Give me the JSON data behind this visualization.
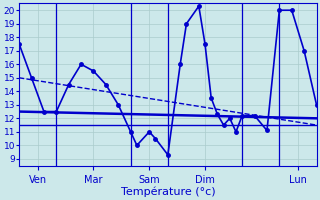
{
  "title": "Température (°c)",
  "background_color": "#cce8ea",
  "grid_color": "#aacccc",
  "line_color": "#0000cc",
  "ylim": [
    8.5,
    20.5
  ],
  "yticks": [
    9,
    10,
    11,
    12,
    13,
    14,
    15,
    16,
    17,
    18,
    19,
    20
  ],
  "xlim": [
    0,
    96
  ],
  "day_separators": [
    12,
    36,
    48,
    72,
    84
  ],
  "day_labels": [
    {
      "x": 6,
      "label": "Ven"
    },
    {
      "x": 24,
      "label": "Mar"
    },
    {
      "x": 42,
      "label": "Sam"
    },
    {
      "x": 60,
      "label": "Dim"
    },
    {
      "x": 90,
      "label": "Lun"
    }
  ],
  "series_main": {
    "x": [
      0,
      4,
      8,
      12,
      16,
      20,
      24,
      28,
      32,
      36,
      38,
      42,
      44,
      48,
      52,
      54,
      58,
      60,
      62,
      64,
      66,
      68,
      70,
      72,
      76,
      80,
      84,
      88,
      92,
      96
    ],
    "y": [
      17.5,
      15.0,
      12.5,
      12.5,
      14.5,
      16.0,
      15.5,
      14.5,
      13.0,
      11.0,
      10.0,
      11.0,
      10.5,
      9.3,
      16.0,
      19.0,
      20.3,
      17.5,
      13.5,
      12.3,
      11.5,
      12.0,
      11.0,
      12.2,
      12.2,
      11.1,
      20.0,
      20.0,
      17.0,
      13.0
    ],
    "linewidth": 1.2,
    "markersize": 2.5
  },
  "series_flat1": {
    "x": [
      0,
      96
    ],
    "y": [
      12.5,
      12.0
    ],
    "linewidth": 1.8,
    "style": "-"
  },
  "series_flat2": {
    "x": [
      0,
      96
    ],
    "y": [
      15.0,
      11.5
    ],
    "linewidth": 1.0,
    "style": "--"
  },
  "series_flat3": {
    "x": [
      0,
      96
    ],
    "y": [
      11.5,
      11.5
    ],
    "linewidth": 1.0,
    "style": "-"
  }
}
